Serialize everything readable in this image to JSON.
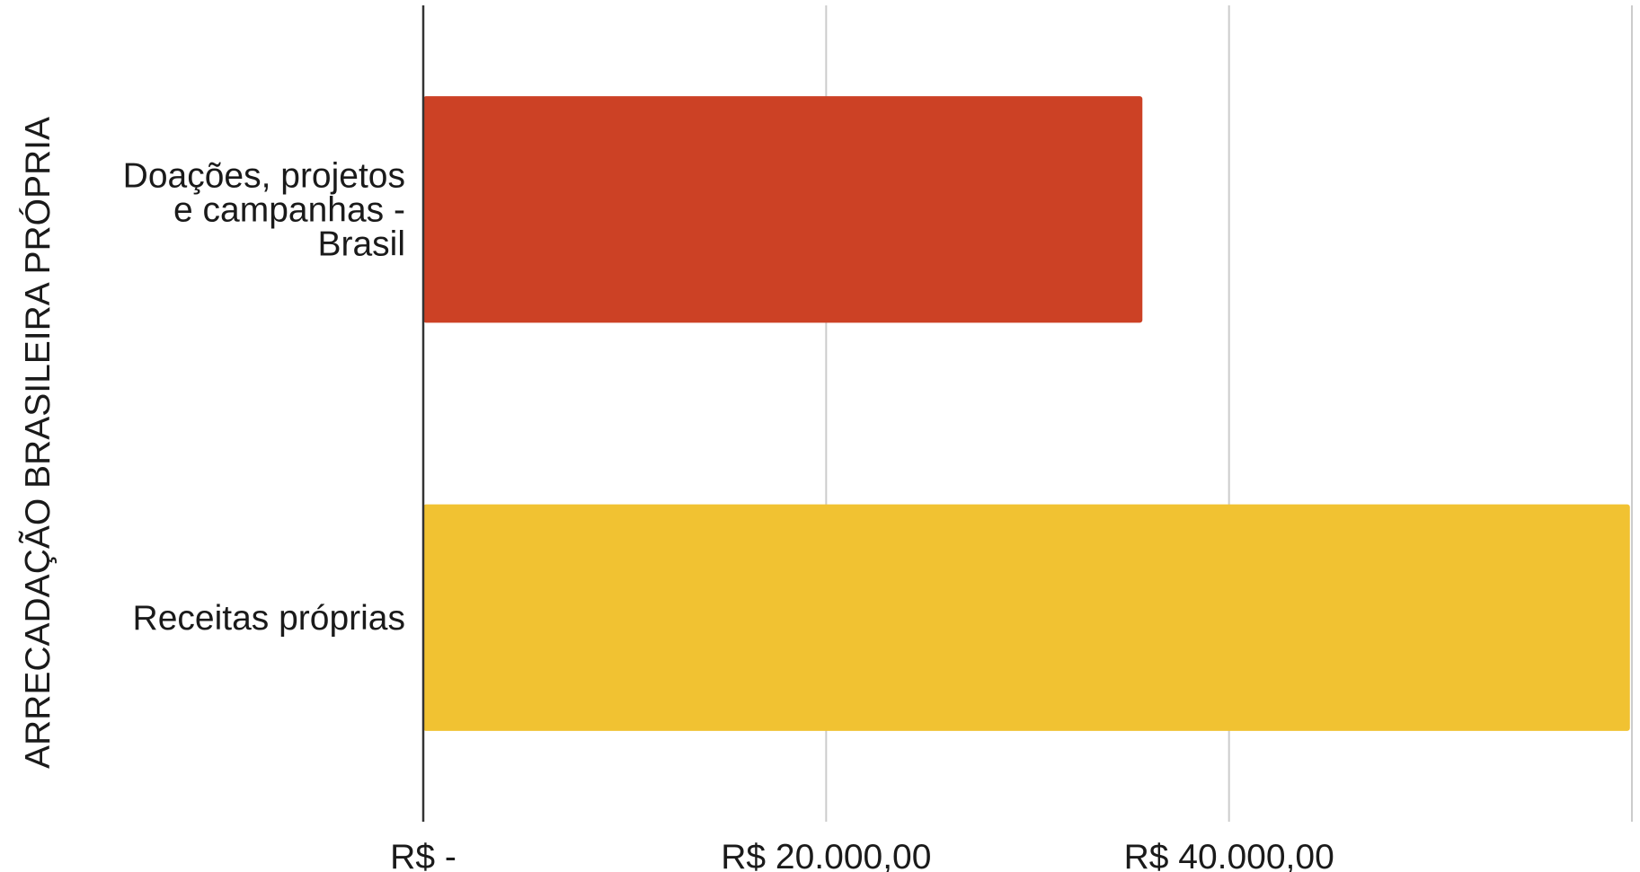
{
  "chart_data": {
    "type": "bar",
    "orientation": "horizontal",
    "title": "",
    "xlabel": "",
    "ylabel": "ARRECADAÇÃO BRASILEIRA PRÓPRIA",
    "categories": [
      [
        "Doações, projetos",
        "e campanhas -",
        "Brasil"
      ],
      [
        "Receitas próprias"
      ]
    ],
    "values": [
      35700,
      59900
    ],
    "bar_colors": [
      "#CC4125",
      "#F1C232"
    ],
    "xlim": [
      0,
      60000
    ],
    "x_ticks": [
      0,
      20000,
      40000
    ],
    "x_tick_labels": [
      "R$  -",
      "R$  20.000,00",
      "R$  40.000,00"
    ],
    "grid": true,
    "legend": "none"
  }
}
